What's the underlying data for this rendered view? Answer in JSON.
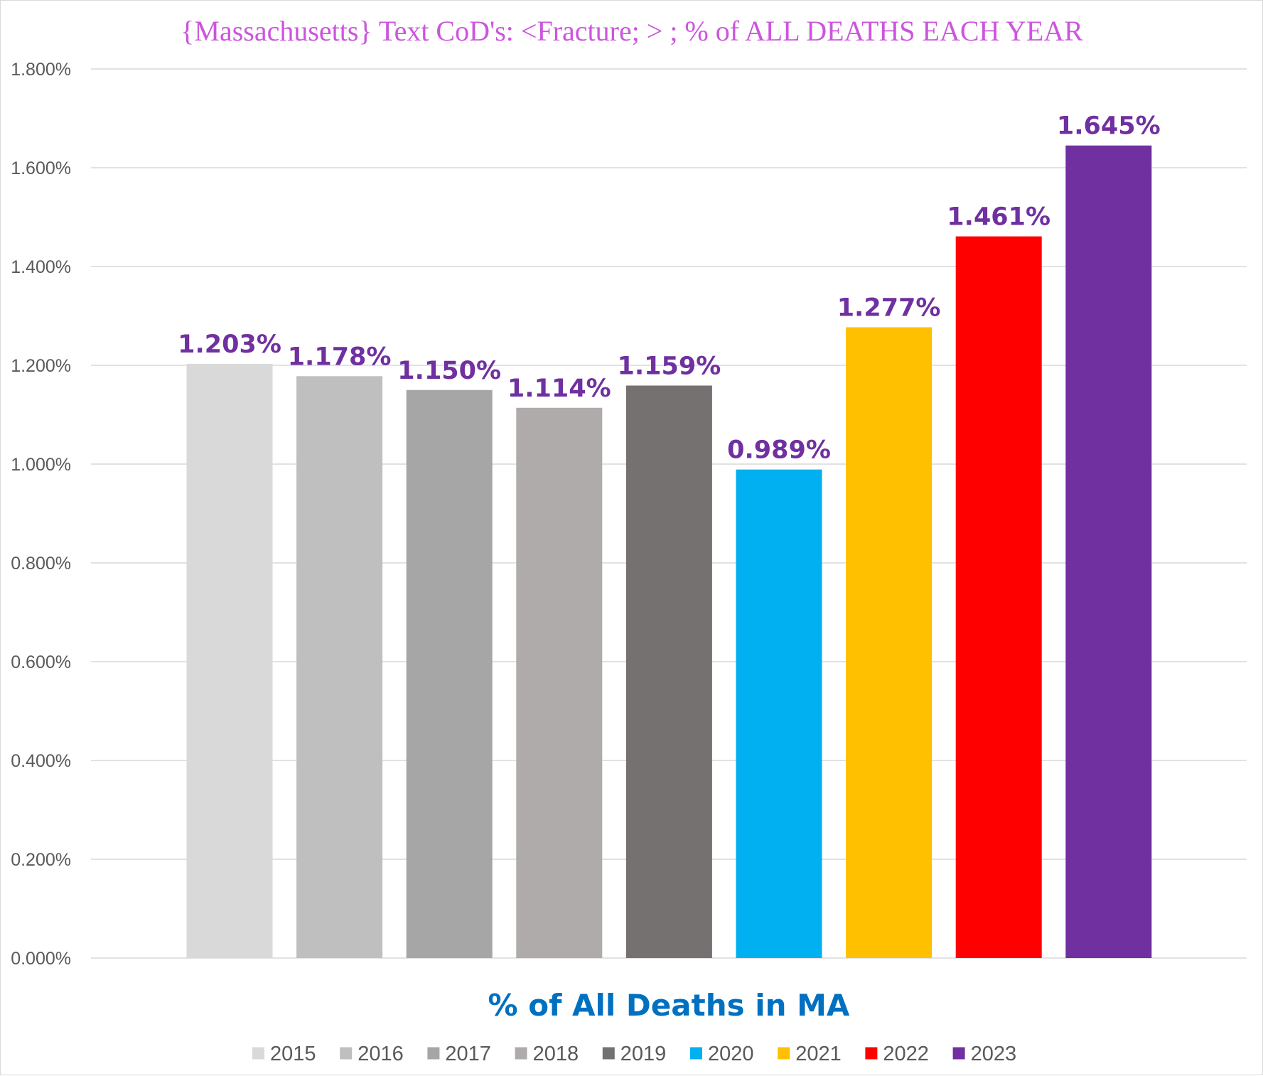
{
  "chart_data": {
    "type": "bar",
    "title": "{Massachusetts}  Text CoD's: <Fracture; > ; % of ALL DEATHS EACH YEAR",
    "xlabel": "% of All Deaths in MA",
    "ylabel": "",
    "ylim": [
      0,
      1.8
    ],
    "ytick_step": 0.2,
    "ytick_format": "percent_3dp",
    "grid": true,
    "legend_position": "bottom",
    "categories": [
      "2015",
      "2016",
      "2017",
      "2018",
      "2019",
      "2020",
      "2021",
      "2022",
      "2023"
    ],
    "values": [
      1.203,
      1.178,
      1.15,
      1.114,
      1.159,
      0.989,
      1.277,
      1.461,
      1.645
    ],
    "value_labels": [
      "1.203%",
      "1.178%",
      "1.150%",
      "1.114%",
      "1.159%",
      "0.989%",
      "1.277%",
      "1.461%",
      "1.645%"
    ],
    "ytick_labels": [
      "0.000%",
      "0.200%",
      "0.400%",
      "0.600%",
      "0.800%",
      "1.000%",
      "1.200%",
      "1.400%",
      "1.600%",
      "1.800%"
    ],
    "bar_colors": [
      "#d9d9d9",
      "#bfbfbf",
      "#a6a6a6",
      "#afabab",
      "#767171",
      "#00b0f0",
      "#ffc000",
      "#ff0000",
      "#7030a0"
    ],
    "title_color": "#cc55dd",
    "value_label_color": "#7030a0",
    "xlabel_color": "#0070c0",
    "gridline_color": "#d9d9d9"
  }
}
